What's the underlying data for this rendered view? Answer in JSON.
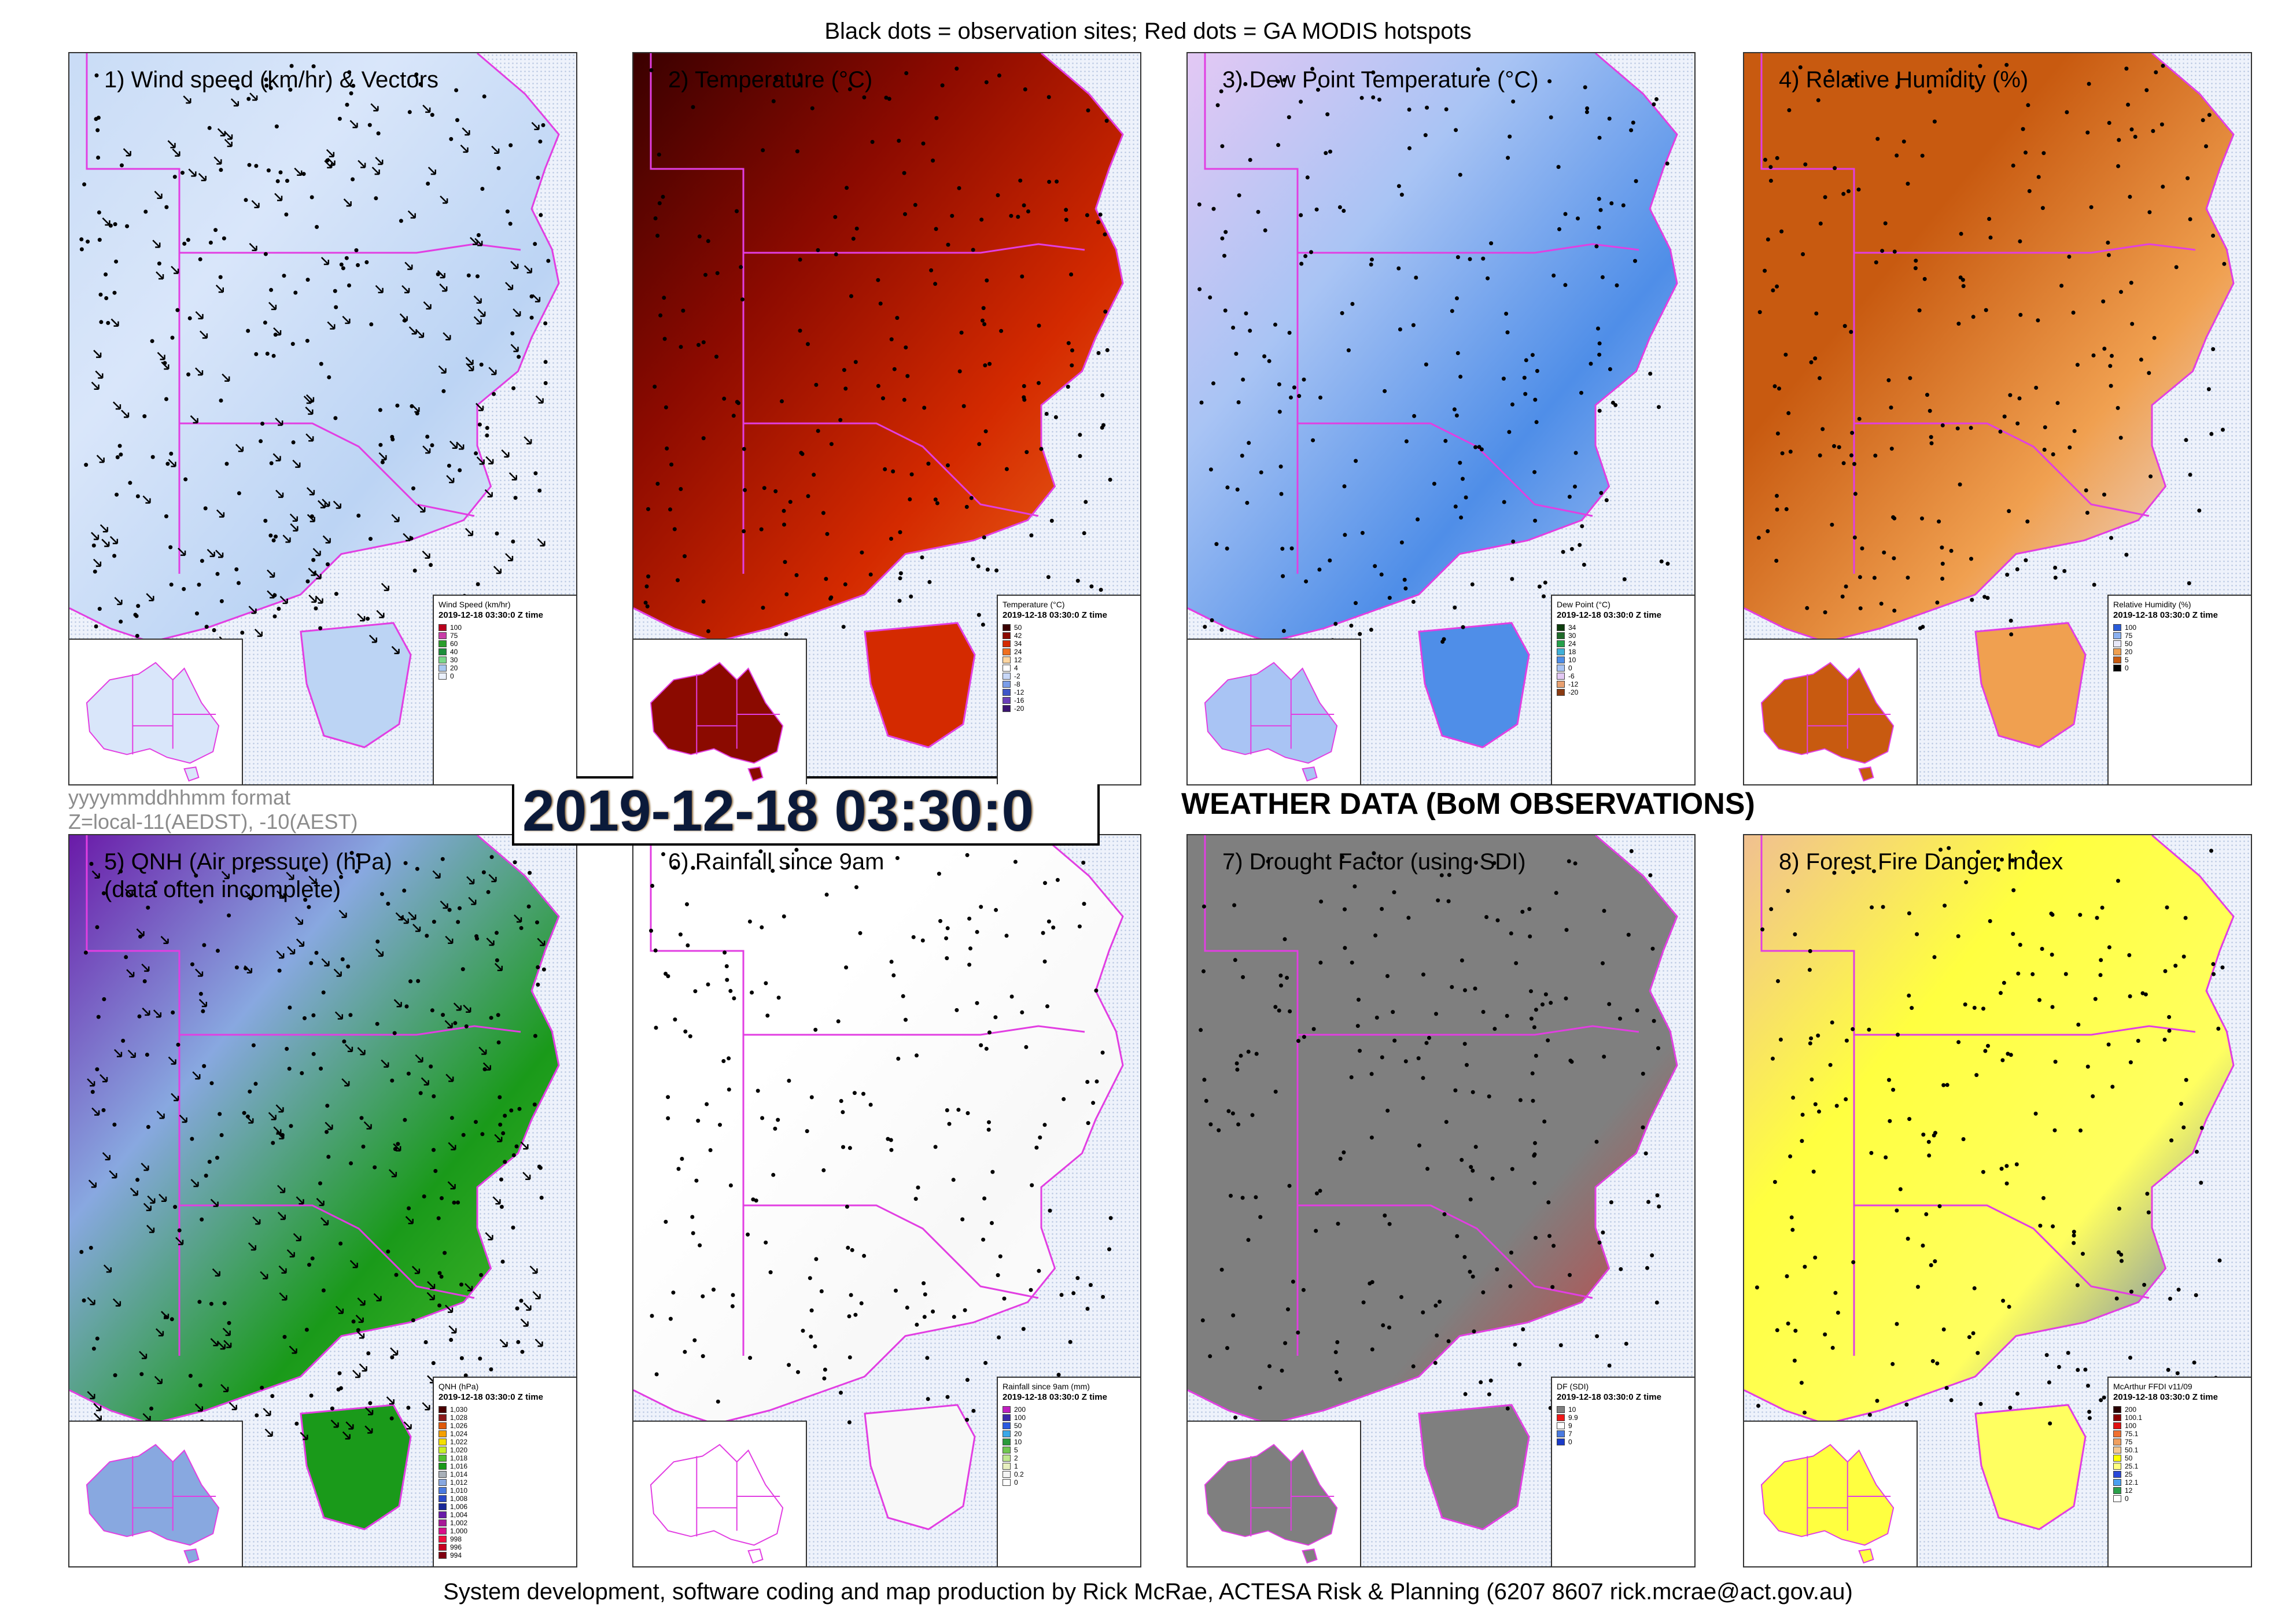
{
  "header": "Black dots = observation sites; Red dots = GA MODIS hotspots",
  "footer": "System development, software coding and map production by Rick McRae, ACTESA Risk & Planning (6207 8607 rick.mcrae@act.gov.au)",
  "timestamp_box": "2019-12-18 03:30:0",
  "format_line1": "yyyymmddhhmm format",
  "format_line2": "Z=local-11(AEDST), -10(AEST)",
  "section_title": "WEATHER DATA (BoM OBSERVATIONS)",
  "legend_datetime": "2019-12-18 03:30:0 Z time",
  "panels": [
    {
      "title": "1) Wind speed (km/hr) & Vectors",
      "legend_title": "Wind Speed (km/hr)",
      "legend_items": [
        {
          "label": "100",
          "color": "#b8001c"
        },
        {
          "label": "75",
          "color": "#c93da8"
        },
        {
          "label": "60",
          "color": "#2b9e2b"
        },
        {
          "label": "40",
          "color": "#1c8f3a"
        },
        {
          "label": "30",
          "color": "#7ad88a"
        },
        {
          "label": "20",
          "color": "#a8c8f0"
        },
        {
          "label": "0",
          "color": "#eaf0fb"
        }
      ]
    },
    {
      "title": "2) Temperature (°C)",
      "legend_title": "Temperature (°C)",
      "legend_items": [
        {
          "label": "50",
          "color": "#3a0000"
        },
        {
          "label": "42",
          "color": "#8b0a00"
        },
        {
          "label": "34",
          "color": "#d42a00"
        },
        {
          "label": "24",
          "color": "#f0701f"
        },
        {
          "label": "12",
          "color": "#ffd6a0"
        },
        {
          "label": "4",
          "color": "#ffffff"
        },
        {
          "label": "-2",
          "color": "#c8d8f8"
        },
        {
          "label": "-8",
          "color": "#7a9de8"
        },
        {
          "label": "-12",
          "color": "#3f56c8"
        },
        {
          "label": "-16",
          "color": "#6a3fb8"
        },
        {
          "label": "-20",
          "color": "#3a1470"
        }
      ]
    },
    {
      "title": "3) Dew Point Temperature (°C)",
      "legend_title": "Dew Point (°C)",
      "legend_items": [
        {
          "label": "34",
          "color": "#0d3d0d"
        },
        {
          "label": "30",
          "color": "#1f6b2a"
        },
        {
          "label": "24",
          "color": "#25a04a"
        },
        {
          "label": "18",
          "color": "#3fb0d8"
        },
        {
          "label": "10",
          "color": "#4f8ee8"
        },
        {
          "label": "0",
          "color": "#a9c4f4"
        },
        {
          "label": "-6",
          "color": "#e3c8f4"
        },
        {
          "label": "-12",
          "color": "#e8a070"
        },
        {
          "label": "-20",
          "color": "#8a3a12"
        }
      ]
    },
    {
      "title": "4) Relative Humidity (%)",
      "legend_title": "Relative Humidity (%)",
      "legend_items": [
        {
          "label": "100",
          "color": "#2a5cd8"
        },
        {
          "label": "75",
          "color": "#8ab0f0"
        },
        {
          "label": "50",
          "color": "#e8e8f8"
        },
        {
          "label": "20",
          "color": "#f0a050"
        },
        {
          "label": "5",
          "color": "#c85a10"
        },
        {
          "label": "0",
          "color": "#000000"
        }
      ]
    },
    {
      "title": "5) QNH (Air pressure) (hPa)",
      "title2": "(data often incomplete)",
      "legend_title": "QNH (hPa)",
      "legend_items": [
        {
          "label": "1,030",
          "color": "#4a0000"
        },
        {
          "label": "1,028",
          "color": "#8b1a1a"
        },
        {
          "label": "1,026",
          "color": "#e05a0a"
        },
        {
          "label": "1,024",
          "color": "#f5a000"
        },
        {
          "label": "1,022",
          "color": "#f5e000"
        },
        {
          "label": "1,020",
          "color": "#c8f028"
        },
        {
          "label": "1,018",
          "color": "#50c030"
        },
        {
          "label": "1,016",
          "color": "#1a9a1a"
        },
        {
          "label": "1,014",
          "color": "#a8b0b8"
        },
        {
          "label": "1,012",
          "color": "#88a8e0"
        },
        {
          "label": "1,010",
          "color": "#4a7ae0"
        },
        {
          "label": "1,008",
          "color": "#2a48c8"
        },
        {
          "label": "1,006",
          "color": "#1a2898"
        },
        {
          "label": "1,004",
          "color": "#6a1aa8"
        },
        {
          "label": "1,002",
          "color": "#a81a98"
        },
        {
          "label": "1,000",
          "color": "#d8108a"
        },
        {
          "label": "998",
          "color": "#f01040"
        },
        {
          "label": "996",
          "color": "#c80020"
        },
        {
          "label": "994",
          "color": "#800010"
        }
      ]
    },
    {
      "title": "6) Rainfall since 9am",
      "legend_title": "Rainfall since 9am (mm)",
      "legend_items": [
        {
          "label": "200",
          "color": "#c020c0"
        },
        {
          "label": "100",
          "color": "#3a2aa8"
        },
        {
          "label": "50",
          "color": "#2a5ae0"
        },
        {
          "label": "20",
          "color": "#3aa8e8"
        },
        {
          "label": "10",
          "color": "#2a9a3a"
        },
        {
          "label": "5",
          "color": "#70c850"
        },
        {
          "label": "2",
          "color": "#c0e890"
        },
        {
          "label": "1",
          "color": "#e8f0c0"
        },
        {
          "label": "0.2",
          "color": "#f4f4f4"
        },
        {
          "label": "0",
          "color": "#ffffff"
        }
      ]
    },
    {
      "title": "7) Drought Factor (using SDI)",
      "legend_title": "DF (SDI)",
      "legend_items": [
        {
          "label": "10",
          "color": "#7f7f7f"
        },
        {
          "label": "9.9",
          "color": "#f01818"
        },
        {
          "label": "9",
          "color": "#ffffff"
        },
        {
          "label": "7",
          "color": "#4a7ae0"
        },
        {
          "label": "0",
          "color": "#1a3ac8"
        }
      ]
    },
    {
      "title": "8) Forest Fire Danger Index",
      "legend_title": "McArthur FFDI v11/09",
      "legend_items": [
        {
          "label": "200",
          "color": "#2a0000"
        },
        {
          "label": "100.1",
          "color": "#8b0000"
        },
        {
          "label": "100",
          "color": "#e01010"
        },
        {
          "label": "75.1",
          "color": "#f07030"
        },
        {
          "label": "75",
          "color": "#f0a060"
        },
        {
          "label": "50.1",
          "color": "#f5c890"
        },
        {
          "label": "50",
          "color": "#ffff00"
        },
        {
          "label": "25.1",
          "color": "#ffff80"
        },
        {
          "label": "25",
          "color": "#2a48d8"
        },
        {
          "label": "12.1",
          "color": "#4aa0f0"
        },
        {
          "label": "12",
          "color": "#2aa04a"
        },
        {
          "label": "0",
          "color": "#ffffff"
        }
      ]
    }
  ]
}
